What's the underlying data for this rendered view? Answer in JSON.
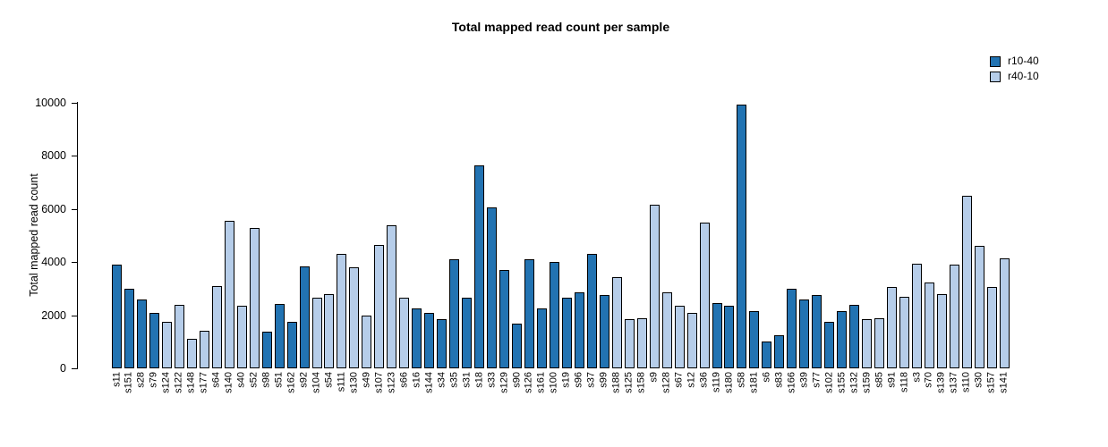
{
  "chart_data": {
    "type": "bar",
    "title": "Total mapped read count per sample",
    "xlabel": "",
    "ylabel": "Total mapped read count",
    "ylim": [
      0,
      10000
    ],
    "yticks": [
      0,
      2000,
      4000,
      6000,
      8000,
      10000
    ],
    "grid": false,
    "legend_position": "top-right",
    "series_colors": {
      "r10-40": "#2273b2",
      "r40-10": "#b6cde9"
    },
    "legend": [
      {
        "label": "r10-40",
        "color": "#2273b2"
      },
      {
        "label": "r40-10",
        "color": "#b6cde9"
      }
    ],
    "categories": [
      "s11",
      "s151",
      "s28",
      "s79",
      "s124",
      "s122",
      "s148",
      "s177",
      "s64",
      "s140",
      "s40",
      "s52",
      "s98",
      "s51",
      "s162",
      "s92",
      "s104",
      "s54",
      "s111",
      "s130",
      "s49",
      "s107",
      "s123",
      "s66",
      "s16",
      "s144",
      "s34",
      "s35",
      "s31",
      "s18",
      "s33",
      "s129",
      "s90",
      "s126",
      "s161",
      "s100",
      "s19",
      "s96",
      "s37",
      "s99",
      "s188",
      "s125",
      "s158",
      "s9",
      "s128",
      "s67",
      "s12",
      "s36",
      "s119",
      "s180",
      "s58",
      "s181",
      "s6",
      "s83",
      "s166",
      "s39",
      "s77",
      "s102",
      "s155",
      "s132",
      "s159",
      "s85",
      "s91",
      "s118",
      "s3",
      "s70",
      "s139",
      "s137",
      "s110",
      "s30",
      "s157",
      "s141"
    ],
    "values": [
      3900,
      3000,
      2600,
      2100,
      1750,
      2400,
      1100,
      1400,
      3100,
      5550,
      2350,
      5300,
      1370,
      2430,
      1750,
      3850,
      2650,
      2800,
      4300,
      3800,
      2000,
      4650,
      5400,
      2650,
      2250,
      2100,
      1850,
      4100,
      2650,
      7650,
      6050,
      3700,
      1700,
      4100,
      2250,
      4000,
      2650,
      2850,
      4300,
      2750,
      3450,
      1850,
      1900,
      6150,
      2850,
      2350,
      2100,
      5500,
      2450,
      2350,
      9950,
      2150,
      1000,
      1250,
      3000,
      2600,
      2750,
      1750,
      2150,
      2400,
      1850,
      1900,
      3050,
      2700,
      3950,
      3250,
      2800,
      3900,
      6500,
      4600,
      3050,
      4150
    ],
    "groups": [
      "r10-40",
      "r10-40",
      "r10-40",
      "r10-40",
      "r40-10",
      "r40-10",
      "r40-10",
      "r40-10",
      "r40-10",
      "r40-10",
      "r40-10",
      "r40-10",
      "r10-40",
      "r10-40",
      "r10-40",
      "r10-40",
      "r40-10",
      "r40-10",
      "r40-10",
      "r40-10",
      "r40-10",
      "r40-10",
      "r40-10",
      "r40-10",
      "r10-40",
      "r10-40",
      "r10-40",
      "r10-40",
      "r10-40",
      "r10-40",
      "r10-40",
      "r10-40",
      "r10-40",
      "r10-40",
      "r10-40",
      "r10-40",
      "r10-40",
      "r10-40",
      "r10-40",
      "r10-40",
      "r40-10",
      "r40-10",
      "r40-10",
      "r40-10",
      "r40-10",
      "r40-10",
      "r40-10",
      "r40-10",
      "r10-40",
      "r10-40",
      "r10-40",
      "r10-40",
      "r10-40",
      "r10-40",
      "r10-40",
      "r10-40",
      "r10-40",
      "r10-40",
      "r10-40",
      "r10-40",
      "r40-10",
      "r40-10",
      "r40-10",
      "r40-10",
      "r40-10",
      "r40-10",
      "r40-10",
      "r40-10",
      "r40-10",
      "r40-10",
      "r40-10",
      "r40-10"
    ]
  }
}
